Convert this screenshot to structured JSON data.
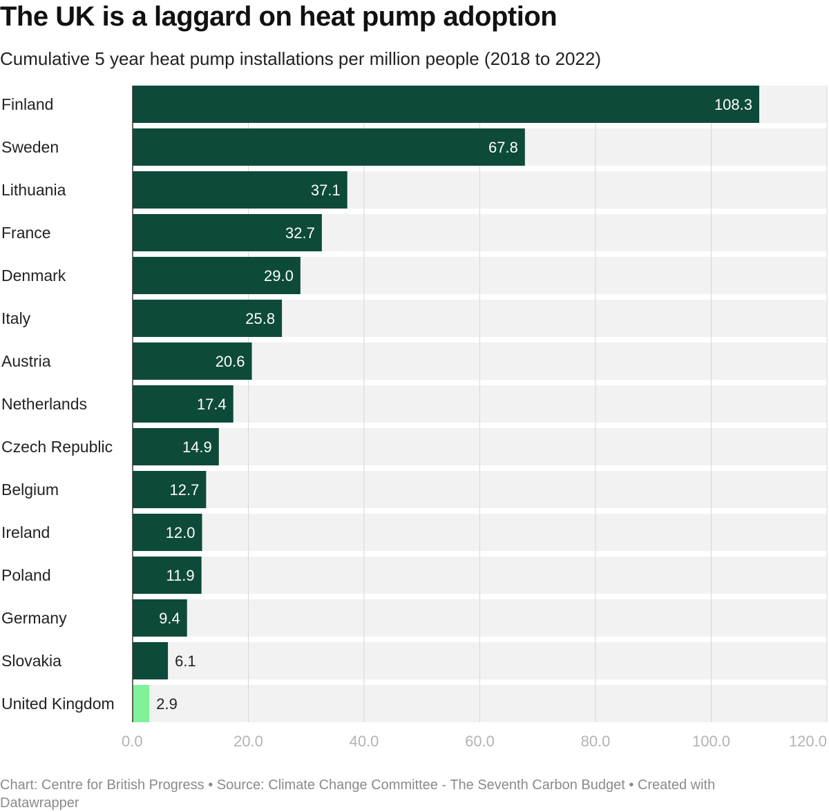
{
  "chart_data": {
    "type": "bar",
    "orientation": "horizontal",
    "title": "The UK is a laggard on heat pump adoption",
    "subtitle": "Cumulative 5 year heat pump installations per million people (2018 to 2022)",
    "categories": [
      "Finland",
      "Sweden",
      "Lithuania",
      "France",
      "Denmark",
      "Italy",
      "Austria",
      "Netherlands",
      "Czech Republic",
      "Belgium",
      "Ireland",
      "Poland",
      "Germany",
      "Slovakia",
      "United Kingdom"
    ],
    "values": [
      108.3,
      67.8,
      37.1,
      32.7,
      29.0,
      25.8,
      20.6,
      17.4,
      14.9,
      12.7,
      12.0,
      11.9,
      9.4,
      6.1,
      2.9
    ],
    "value_labels": [
      "108.3",
      "67.8",
      "37.1",
      "32.7",
      "29.0",
      "25.8",
      "20.6",
      "17.4",
      "14.9",
      "12.7",
      "12.0",
      "11.9",
      "9.4",
      "6.1",
      "2.9"
    ],
    "xlim": [
      0,
      120
    ],
    "x_ticks": [
      0,
      20,
      40,
      60,
      80,
      100,
      120
    ],
    "x_tick_labels": [
      "0.0",
      "20.0",
      "40.0",
      "60.0",
      "80.0",
      "100.0",
      "120.0"
    ],
    "grid": true,
    "colors": {
      "bar": "#0d4a39",
      "highlight": "#7ff29a",
      "background_band": "#f2f2f2",
      "grid": "#d6d6d6"
    },
    "highlight_category": "United Kingdom"
  },
  "footer": {
    "text": "Chart: Centre for British Progress • Source: Climate Change Committee - The Seventh Carbon Budget • Created with Datawrapper"
  }
}
